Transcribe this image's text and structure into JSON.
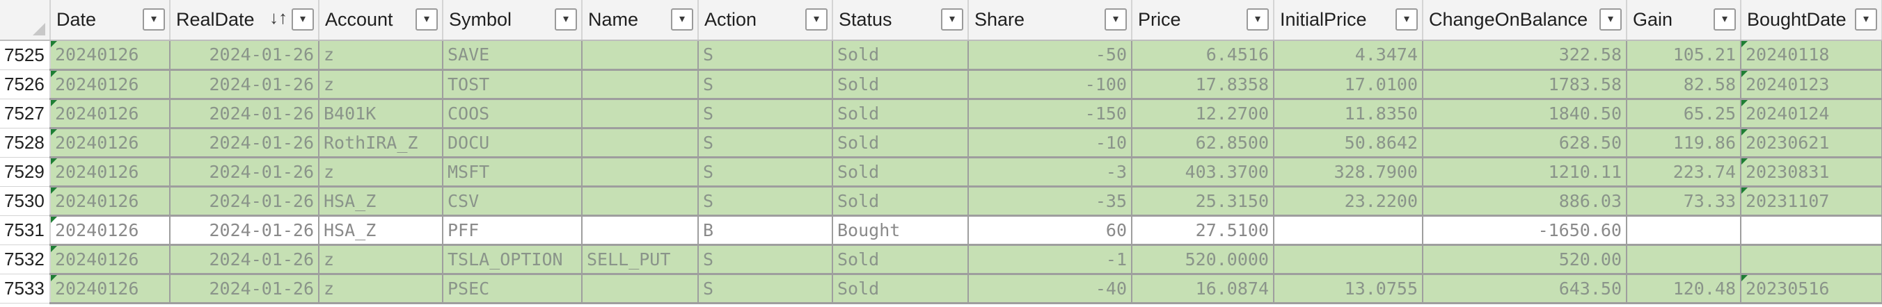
{
  "sheet": {
    "columns": [
      "Date",
      "RealDate",
      "Account",
      "Symbol",
      "Name",
      "Action",
      "Status",
      "Share",
      "Price",
      "InitialPrice",
      "ChangeOnBalance",
      "Gain",
      "BoughtDate"
    ],
    "sort_indicator": "↓↑",
    "filter_glyph": "▾",
    "colors": {
      "header_bg": "#f3f3f3",
      "row_highlight": "#c6e0b4",
      "gridline": "#9e9e9e",
      "error_triangle": "#1e7e34"
    },
    "rows": [
      {
        "num": "7525",
        "highlight": true,
        "cells": [
          "20240126",
          "2024-01-26",
          "z",
          "SAVE",
          "",
          "S",
          "Sold",
          "-50",
          "6.4516",
          "4.3474",
          "322.58",
          "105.21",
          "20240118"
        ]
      },
      {
        "num": "7526",
        "highlight": true,
        "cells": [
          "20240126",
          "2024-01-26",
          "z",
          "TOST",
          "",
          "S",
          "Sold",
          "-100",
          "17.8358",
          "17.0100",
          "1783.58",
          "82.58",
          "20240123"
        ]
      },
      {
        "num": "7527",
        "highlight": true,
        "cells": [
          "20240126",
          "2024-01-26",
          "B401K",
          "COOS",
          "",
          "S",
          "Sold",
          "-150",
          "12.2700",
          "11.8350",
          "1840.50",
          "65.25",
          "20240124"
        ]
      },
      {
        "num": "7528",
        "highlight": true,
        "cells": [
          "20240126",
          "2024-01-26",
          "RothIRA_Z",
          "DOCU",
          "",
          "S",
          "Sold",
          "-10",
          "62.8500",
          "50.8642",
          "628.50",
          "119.86",
          "20230621"
        ]
      },
      {
        "num": "7529",
        "highlight": true,
        "cells": [
          "20240126",
          "2024-01-26",
          "z",
          "MSFT",
          "",
          "S",
          "Sold",
          "-3",
          "403.3700",
          "328.7900",
          "1210.11",
          "223.74",
          "20230831"
        ]
      },
      {
        "num": "7530",
        "highlight": true,
        "cells": [
          "20240126",
          "2024-01-26",
          "HSA_Z",
          "CSV",
          "",
          "S",
          "Sold",
          "-35",
          "25.3150",
          "23.2200",
          "886.03",
          "73.33",
          "20231107"
        ]
      },
      {
        "num": "7531",
        "highlight": false,
        "cells": [
          "20240126",
          "2024-01-26",
          "HSA_Z",
          "PFF",
          "",
          "B",
          "Bought",
          "60",
          "27.5100",
          "",
          "-1650.60",
          "",
          ""
        ]
      },
      {
        "num": "7532",
        "highlight": true,
        "cells": [
          "20240126",
          "2024-01-26",
          "z",
          "TSLA_OPTION",
          "SELL_PUT",
          "S",
          "Sold",
          "-1",
          "520.0000",
          "",
          "520.00",
          "",
          ""
        ]
      },
      {
        "num": "7533",
        "highlight": true,
        "cells": [
          "20240126",
          "2024-01-26",
          "z",
          "PSEC",
          "",
          "S",
          "Sold",
          "-40",
          "16.0874",
          "13.0755",
          "643.50",
          "120.48",
          "20230516"
        ]
      }
    ]
  }
}
